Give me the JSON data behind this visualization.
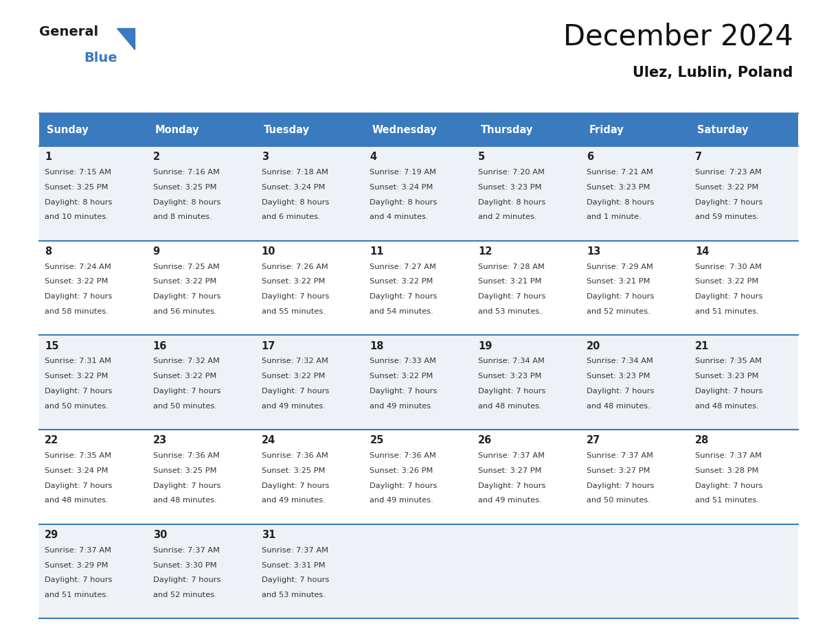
{
  "title": "December 2024",
  "subtitle": "Ulez, Lublin, Poland",
  "days_of_week": [
    "Sunday",
    "Monday",
    "Tuesday",
    "Wednesday",
    "Thursday",
    "Friday",
    "Saturday"
  ],
  "header_bg": "#3a7abf",
  "header_text": "#ffffff",
  "row_bg_even": "#eef2f7",
  "row_bg_odd": "#ffffff",
  "separator_color": "#3a7abf",
  "day_num_color": "#222222",
  "cell_text_color": "#333333",
  "calendar_data": [
    [
      {
        "day": 1,
        "sunrise": "7:15 AM",
        "sunset": "3:25 PM",
        "daylight_line1": "8 hours",
        "daylight_line2": "and 10 minutes."
      },
      {
        "day": 2,
        "sunrise": "7:16 AM",
        "sunset": "3:25 PM",
        "daylight_line1": "8 hours",
        "daylight_line2": "and 8 minutes."
      },
      {
        "day": 3,
        "sunrise": "7:18 AM",
        "sunset": "3:24 PM",
        "daylight_line1": "8 hours",
        "daylight_line2": "and 6 minutes."
      },
      {
        "day": 4,
        "sunrise": "7:19 AM",
        "sunset": "3:24 PM",
        "daylight_line1": "8 hours",
        "daylight_line2": "and 4 minutes."
      },
      {
        "day": 5,
        "sunrise": "7:20 AM",
        "sunset": "3:23 PM",
        "daylight_line1": "8 hours",
        "daylight_line2": "and 2 minutes."
      },
      {
        "day": 6,
        "sunrise": "7:21 AM",
        "sunset": "3:23 PM",
        "daylight_line1": "8 hours",
        "daylight_line2": "and 1 minute."
      },
      {
        "day": 7,
        "sunrise": "7:23 AM",
        "sunset": "3:22 PM",
        "daylight_line1": "7 hours",
        "daylight_line2": "and 59 minutes."
      }
    ],
    [
      {
        "day": 8,
        "sunrise": "7:24 AM",
        "sunset": "3:22 PM",
        "daylight_line1": "7 hours",
        "daylight_line2": "and 58 minutes."
      },
      {
        "day": 9,
        "sunrise": "7:25 AM",
        "sunset": "3:22 PM",
        "daylight_line1": "7 hours",
        "daylight_line2": "and 56 minutes."
      },
      {
        "day": 10,
        "sunrise": "7:26 AM",
        "sunset": "3:22 PM",
        "daylight_line1": "7 hours",
        "daylight_line2": "and 55 minutes."
      },
      {
        "day": 11,
        "sunrise": "7:27 AM",
        "sunset": "3:22 PM",
        "daylight_line1": "7 hours",
        "daylight_line2": "and 54 minutes."
      },
      {
        "day": 12,
        "sunrise": "7:28 AM",
        "sunset": "3:21 PM",
        "daylight_line1": "7 hours",
        "daylight_line2": "and 53 minutes."
      },
      {
        "day": 13,
        "sunrise": "7:29 AM",
        "sunset": "3:21 PM",
        "daylight_line1": "7 hours",
        "daylight_line2": "and 52 minutes."
      },
      {
        "day": 14,
        "sunrise": "7:30 AM",
        "sunset": "3:22 PM",
        "daylight_line1": "7 hours",
        "daylight_line2": "and 51 minutes."
      }
    ],
    [
      {
        "day": 15,
        "sunrise": "7:31 AM",
        "sunset": "3:22 PM",
        "daylight_line1": "7 hours",
        "daylight_line2": "and 50 minutes."
      },
      {
        "day": 16,
        "sunrise": "7:32 AM",
        "sunset": "3:22 PM",
        "daylight_line1": "7 hours",
        "daylight_line2": "and 50 minutes."
      },
      {
        "day": 17,
        "sunrise": "7:32 AM",
        "sunset": "3:22 PM",
        "daylight_line1": "7 hours",
        "daylight_line2": "and 49 minutes."
      },
      {
        "day": 18,
        "sunrise": "7:33 AM",
        "sunset": "3:22 PM",
        "daylight_line1": "7 hours",
        "daylight_line2": "and 49 minutes."
      },
      {
        "day": 19,
        "sunrise": "7:34 AM",
        "sunset": "3:23 PM",
        "daylight_line1": "7 hours",
        "daylight_line2": "and 48 minutes."
      },
      {
        "day": 20,
        "sunrise": "7:34 AM",
        "sunset": "3:23 PM",
        "daylight_line1": "7 hours",
        "daylight_line2": "and 48 minutes."
      },
      {
        "day": 21,
        "sunrise": "7:35 AM",
        "sunset": "3:23 PM",
        "daylight_line1": "7 hours",
        "daylight_line2": "and 48 minutes."
      }
    ],
    [
      {
        "day": 22,
        "sunrise": "7:35 AM",
        "sunset": "3:24 PM",
        "daylight_line1": "7 hours",
        "daylight_line2": "and 48 minutes."
      },
      {
        "day": 23,
        "sunrise": "7:36 AM",
        "sunset": "3:25 PM",
        "daylight_line1": "7 hours",
        "daylight_line2": "and 48 minutes."
      },
      {
        "day": 24,
        "sunrise": "7:36 AM",
        "sunset": "3:25 PM",
        "daylight_line1": "7 hours",
        "daylight_line2": "and 49 minutes."
      },
      {
        "day": 25,
        "sunrise": "7:36 AM",
        "sunset": "3:26 PM",
        "daylight_line1": "7 hours",
        "daylight_line2": "and 49 minutes."
      },
      {
        "day": 26,
        "sunrise": "7:37 AM",
        "sunset": "3:27 PM",
        "daylight_line1": "7 hours",
        "daylight_line2": "and 49 minutes."
      },
      {
        "day": 27,
        "sunrise": "7:37 AM",
        "sunset": "3:27 PM",
        "daylight_line1": "7 hours",
        "daylight_line2": "and 50 minutes."
      },
      {
        "day": 28,
        "sunrise": "7:37 AM",
        "sunset": "3:28 PM",
        "daylight_line1": "7 hours",
        "daylight_line2": "and 51 minutes."
      }
    ],
    [
      {
        "day": 29,
        "sunrise": "7:37 AM",
        "sunset": "3:29 PM",
        "daylight_line1": "7 hours",
        "daylight_line2": "and 51 minutes."
      },
      {
        "day": 30,
        "sunrise": "7:37 AM",
        "sunset": "3:30 PM",
        "daylight_line1": "7 hours",
        "daylight_line2": "and 52 minutes."
      },
      {
        "day": 31,
        "sunrise": "7:37 AM",
        "sunset": "3:31 PM",
        "daylight_line1": "7 hours",
        "daylight_line2": "and 53 minutes."
      },
      null,
      null,
      null,
      null
    ]
  ]
}
